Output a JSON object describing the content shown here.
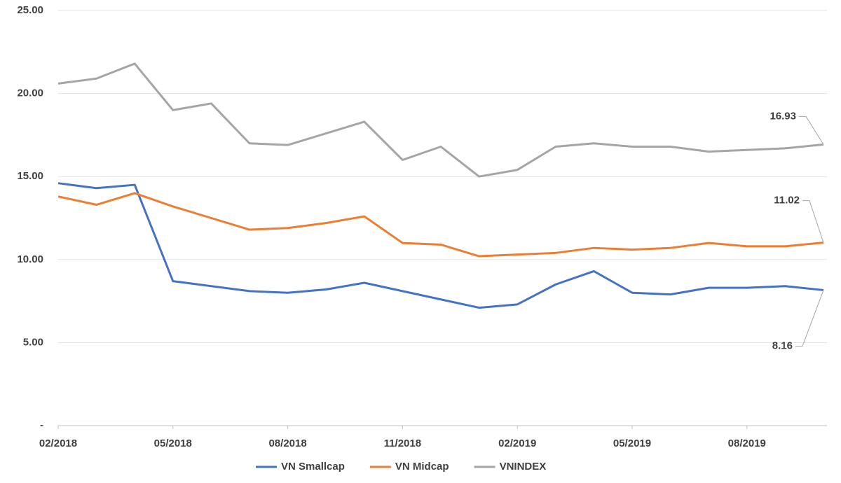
{
  "chart_data": {
    "type": "line",
    "categories": [
      "02/2018",
      null,
      null,
      "05/2018",
      null,
      null,
      "08/2018",
      null,
      null,
      "11/2018",
      null,
      null,
      "02/2019",
      null,
      null,
      "05/2019",
      null,
      null,
      "08/2019",
      null,
      null
    ],
    "series": [
      {
        "name": "VN Smallcap",
        "color": "#4472c4",
        "values": [
          14.6,
          14.3,
          14.5,
          8.7,
          8.4,
          8.1,
          8.0,
          8.2,
          8.6,
          8.1,
          7.6,
          7.1,
          7.3,
          8.5,
          9.3,
          8.0,
          7.9,
          8.3,
          8.3,
          8.4,
          8.16
        ]
      },
      {
        "name": "VN Midcap",
        "color": "#ed7d31",
        "values": [
          13.8,
          13.3,
          14.0,
          13.2,
          12.5,
          11.8,
          11.9,
          12.2,
          12.6,
          11.0,
          10.9,
          10.2,
          10.3,
          10.4,
          10.7,
          10.6,
          10.7,
          11.0,
          10.8,
          10.8,
          11.02
        ]
      },
      {
        "name": "VNINDEX",
        "color": "#a5a5a5",
        "values": [
          20.6,
          20.9,
          21.8,
          19.0,
          19.4,
          17.0,
          16.9,
          17.6,
          18.3,
          16.0,
          16.8,
          15.0,
          15.4,
          16.8,
          17.0,
          16.8,
          16.8,
          16.5,
          16.6,
          16.7,
          16.93
        ]
      }
    ],
    "ylim": [
      0,
      25
    ],
    "yticks": [
      {
        "value": 0,
        "label": "-"
      },
      {
        "value": 5,
        "label": "5.00"
      },
      {
        "value": 10,
        "label": "10.00"
      },
      {
        "value": 15,
        "label": "15.00"
      },
      {
        "value": 20,
        "label": "20.00"
      },
      {
        "value": 25,
        "label": "25.00"
      }
    ],
    "grid": true,
    "legend": "bottom"
  }
}
